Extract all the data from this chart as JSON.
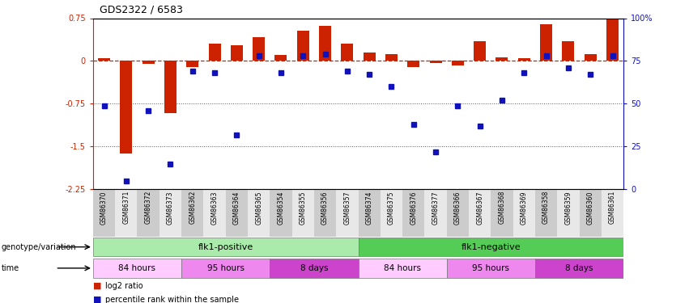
{
  "title": "GDS2322 / 6583",
  "samples": [
    "GSM86370",
    "GSM86371",
    "GSM86372",
    "GSM86373",
    "GSM86362",
    "GSM86363",
    "GSM86364",
    "GSM86365",
    "GSM86354",
    "GSM86355",
    "GSM86356",
    "GSM86357",
    "GSM86374",
    "GSM86375",
    "GSM86376",
    "GSM86377",
    "GSM86366",
    "GSM86367",
    "GSM86368",
    "GSM86369",
    "GSM86358",
    "GSM86359",
    "GSM86360",
    "GSM86361"
  ],
  "log2_ratio": [
    0.05,
    -1.62,
    -0.05,
    -0.92,
    -0.1,
    0.3,
    0.28,
    0.42,
    0.1,
    0.53,
    0.62,
    0.3,
    0.15,
    0.12,
    -0.1,
    -0.04,
    -0.08,
    0.35,
    0.07,
    0.05,
    0.65,
    0.35,
    0.12,
    0.75
  ],
  "percentile_rank": [
    49,
    5,
    46,
    15,
    69,
    68,
    32,
    78,
    68,
    78,
    79,
    69,
    67,
    60,
    38,
    22,
    49,
    37,
    52,
    68,
    78,
    71,
    67,
    78
  ],
  "genotype_groups": [
    {
      "label": "flk1-positive",
      "start": 0,
      "end": 12,
      "color": "#aaeaaa"
    },
    {
      "label": "flk1-negative",
      "start": 12,
      "end": 24,
      "color": "#55cc55"
    }
  ],
  "time_groups": [
    {
      "label": "84 hours",
      "start": 0,
      "end": 4,
      "color": "#ffccff"
    },
    {
      "label": "95 hours",
      "start": 4,
      "end": 8,
      "color": "#ee88ee"
    },
    {
      "label": "8 days",
      "start": 8,
      "end": 12,
      "color": "#cc55cc"
    },
    {
      "label": "84 hours",
      "start": 12,
      "end": 16,
      "color": "#ffccff"
    },
    {
      "label": "95 hours",
      "start": 16,
      "end": 20,
      "color": "#ee88ee"
    },
    {
      "label": "8 days",
      "start": 20,
      "end": 24,
      "color": "#cc55cc"
    }
  ],
  "ylim_left": [
    -2.25,
    0.75
  ],
  "ylim_right": [
    0,
    100
  ],
  "left_ticks": [
    -2.25,
    -1.5,
    -0.75,
    0,
    0.75
  ],
  "left_tick_labels": [
    "-2.25",
    "-1.5",
    "-0.75",
    "0",
    "0.75"
  ],
  "right_tick_values": [
    0,
    25,
    50,
    75,
    100
  ],
  "right_tick_labels": [
    "0",
    "25",
    "50",
    "75",
    "100%"
  ],
  "bar_color": "#cc2200",
  "dot_color": "#1111bb",
  "ref_line_color": "#cc2200",
  "dotted_line_color": "#555555",
  "dotted_line_values": [
    -0.75,
    -1.5
  ],
  "legend_labels": [
    "log2 ratio",
    "percentile rank within the sample"
  ],
  "genotype_label": "genotype/variation",
  "time_label": "time"
}
